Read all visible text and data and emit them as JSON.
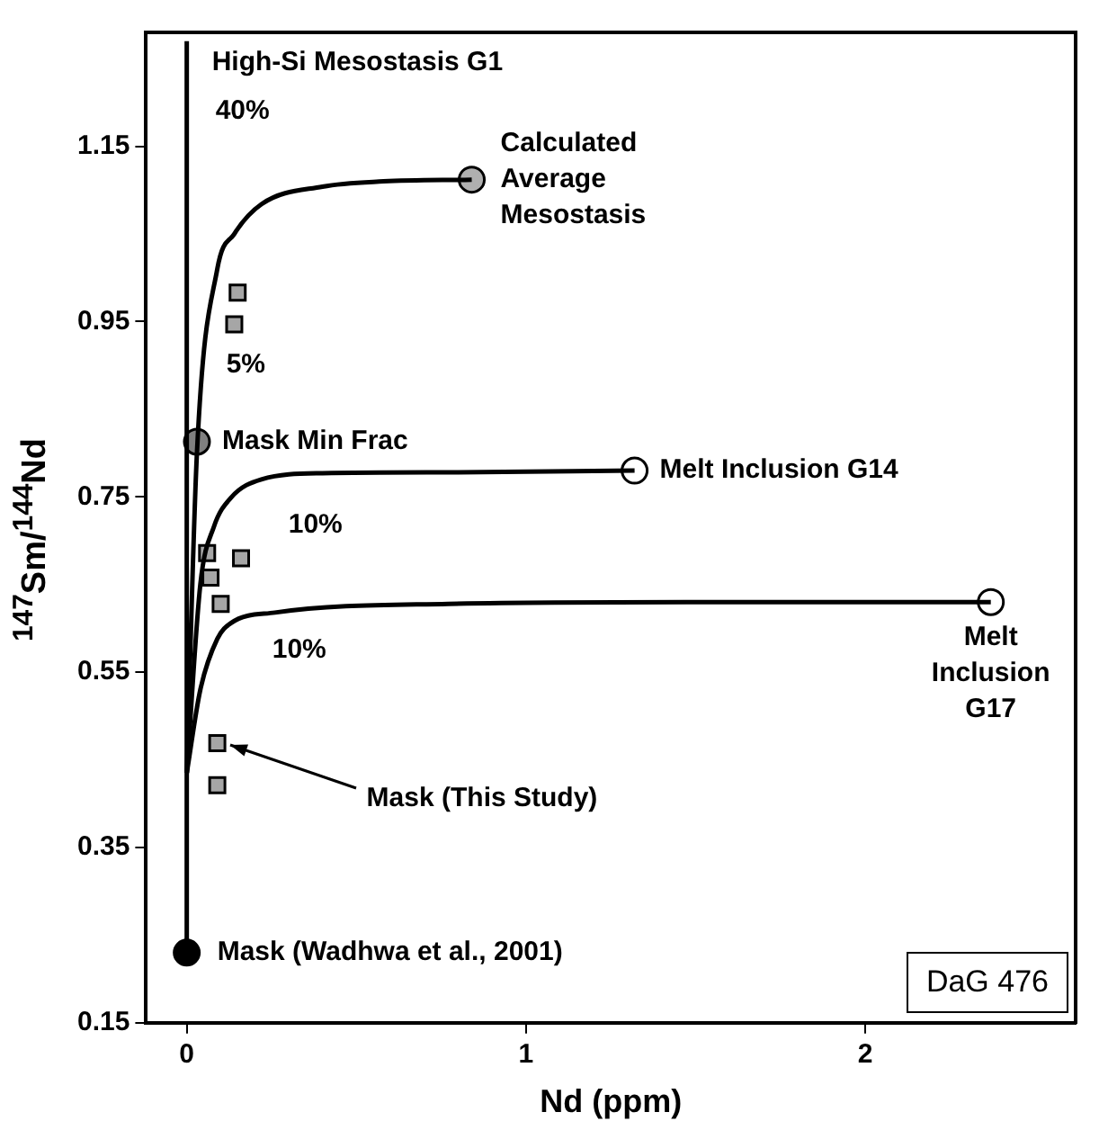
{
  "chart_data": {
    "type": "scatter",
    "xlabel": "Nd (ppm)",
    "ylabel": "$^{147}$Sm/$^{144}$Nd",
    "xlim": [
      -0.12,
      2.62
    ],
    "xticks": [
      0,
      1,
      2
    ],
    "ylim": [
      0.15,
      1.28
    ],
    "yticks": [
      0.15,
      0.35,
      0.55,
      0.75,
      0.95,
      1.15
    ],
    "grid": false,
    "legend": false,
    "series": [
      {
        "type": "line",
        "color": "#000000",
        "marker": "none",
        "x": [
          0,
          0
        ],
        "values": [
          0.23,
          1.27
        ]
      },
      {
        "type": "line",
        "color": "#000000",
        "marker": "none",
        "x": [
          0,
          0.03,
          0.09,
          0.14,
          0.22,
          0.4,
          0.58,
          0.84
        ],
        "values": [
          0.435,
          0.8,
          1.01,
          1.05,
          1.084,
          1.104,
          1.11,
          1.112
        ]
      },
      {
        "type": "line",
        "color": "#000000",
        "marker": "none",
        "x": [
          0,
          0.04,
          0.08,
          0.13,
          0.22,
          0.4,
          0.8,
          1.32
        ],
        "values": [
          0.435,
          0.65,
          0.716,
          0.749,
          0.77,
          0.777,
          0.778,
          0.78
        ]
      },
      {
        "type": "line",
        "color": "#000000",
        "marker": "none",
        "x": [
          0,
          0.04,
          0.09,
          0.13,
          0.26,
          0.77,
          1.5,
          2.37
        ],
        "values": [
          0.435,
          0.53,
          0.588,
          0.606,
          0.618,
          0.628,
          0.63,
          0.63
        ]
      },
      {
        "type": "scatter",
        "color": "#a6a6a6",
        "marker": "square",
        "x": [
          0.15,
          0.14,
          0.06,
          0.16,
          0.07,
          0.1,
          0.09,
          0.09
        ],
        "values": [
          0.983,
          0.947,
          0.686,
          0.68,
          0.658,
          0.628,
          0.469,
          0.421
        ]
      },
      {
        "type": "scatter",
        "color": "#000000",
        "marker": "circle",
        "x": [
          0
        ],
        "values": [
          0.23
        ]
      },
      {
        "type": "scatter",
        "color": "#808080",
        "marker": "circle",
        "x": [
          0.03
        ],
        "values": [
          0.813
        ]
      },
      {
        "type": "scatter",
        "color": "#b0b0b0",
        "marker": "circle",
        "x": [
          0.84
        ],
        "values": [
          1.112
        ]
      },
      {
        "type": "scatter",
        "color": "#ffffff",
        "marker": "circle",
        "x": [
          1.32
        ],
        "values": [
          0.78
        ]
      },
      {
        "type": "scatter",
        "color": "#ffffff",
        "marker": "circle",
        "x": [
          2.37
        ],
        "values": [
          0.63
        ]
      }
    ],
    "annotations": [
      {
        "text": "High-Si Mesostasis G1",
        "x": 0,
        "y": 1.27
      },
      {
        "text": "40%",
        "x": 0,
        "y": 1.19
      },
      {
        "text": "Calculated\nAverage\nMesostasis",
        "x": 0.84,
        "y": 1.112
      },
      {
        "text": "5%",
        "x": 0,
        "y": 0.9
      },
      {
        "text": "Mask Min Frac",
        "x": 0.03,
        "y": 0.813
      },
      {
        "text": "Melt Inclusion G14",
        "x": 1.32,
        "y": 0.78
      },
      {
        "text": "10%",
        "x": 0.13,
        "y": 0.749
      },
      {
        "text": "10%",
        "x": 0.13,
        "y": 0.606
      },
      {
        "text": "Melt\nInclusion\nG17",
        "x": 2.37,
        "y": 0.63
      },
      {
        "text": "Mask (This Study)",
        "x": 0.09,
        "y": 0.469
      },
      {
        "text": "Mask (Wadhwa et al., 2001)",
        "x": 0,
        "y": 0.23
      },
      "DaG 476"
    ]
  }
}
